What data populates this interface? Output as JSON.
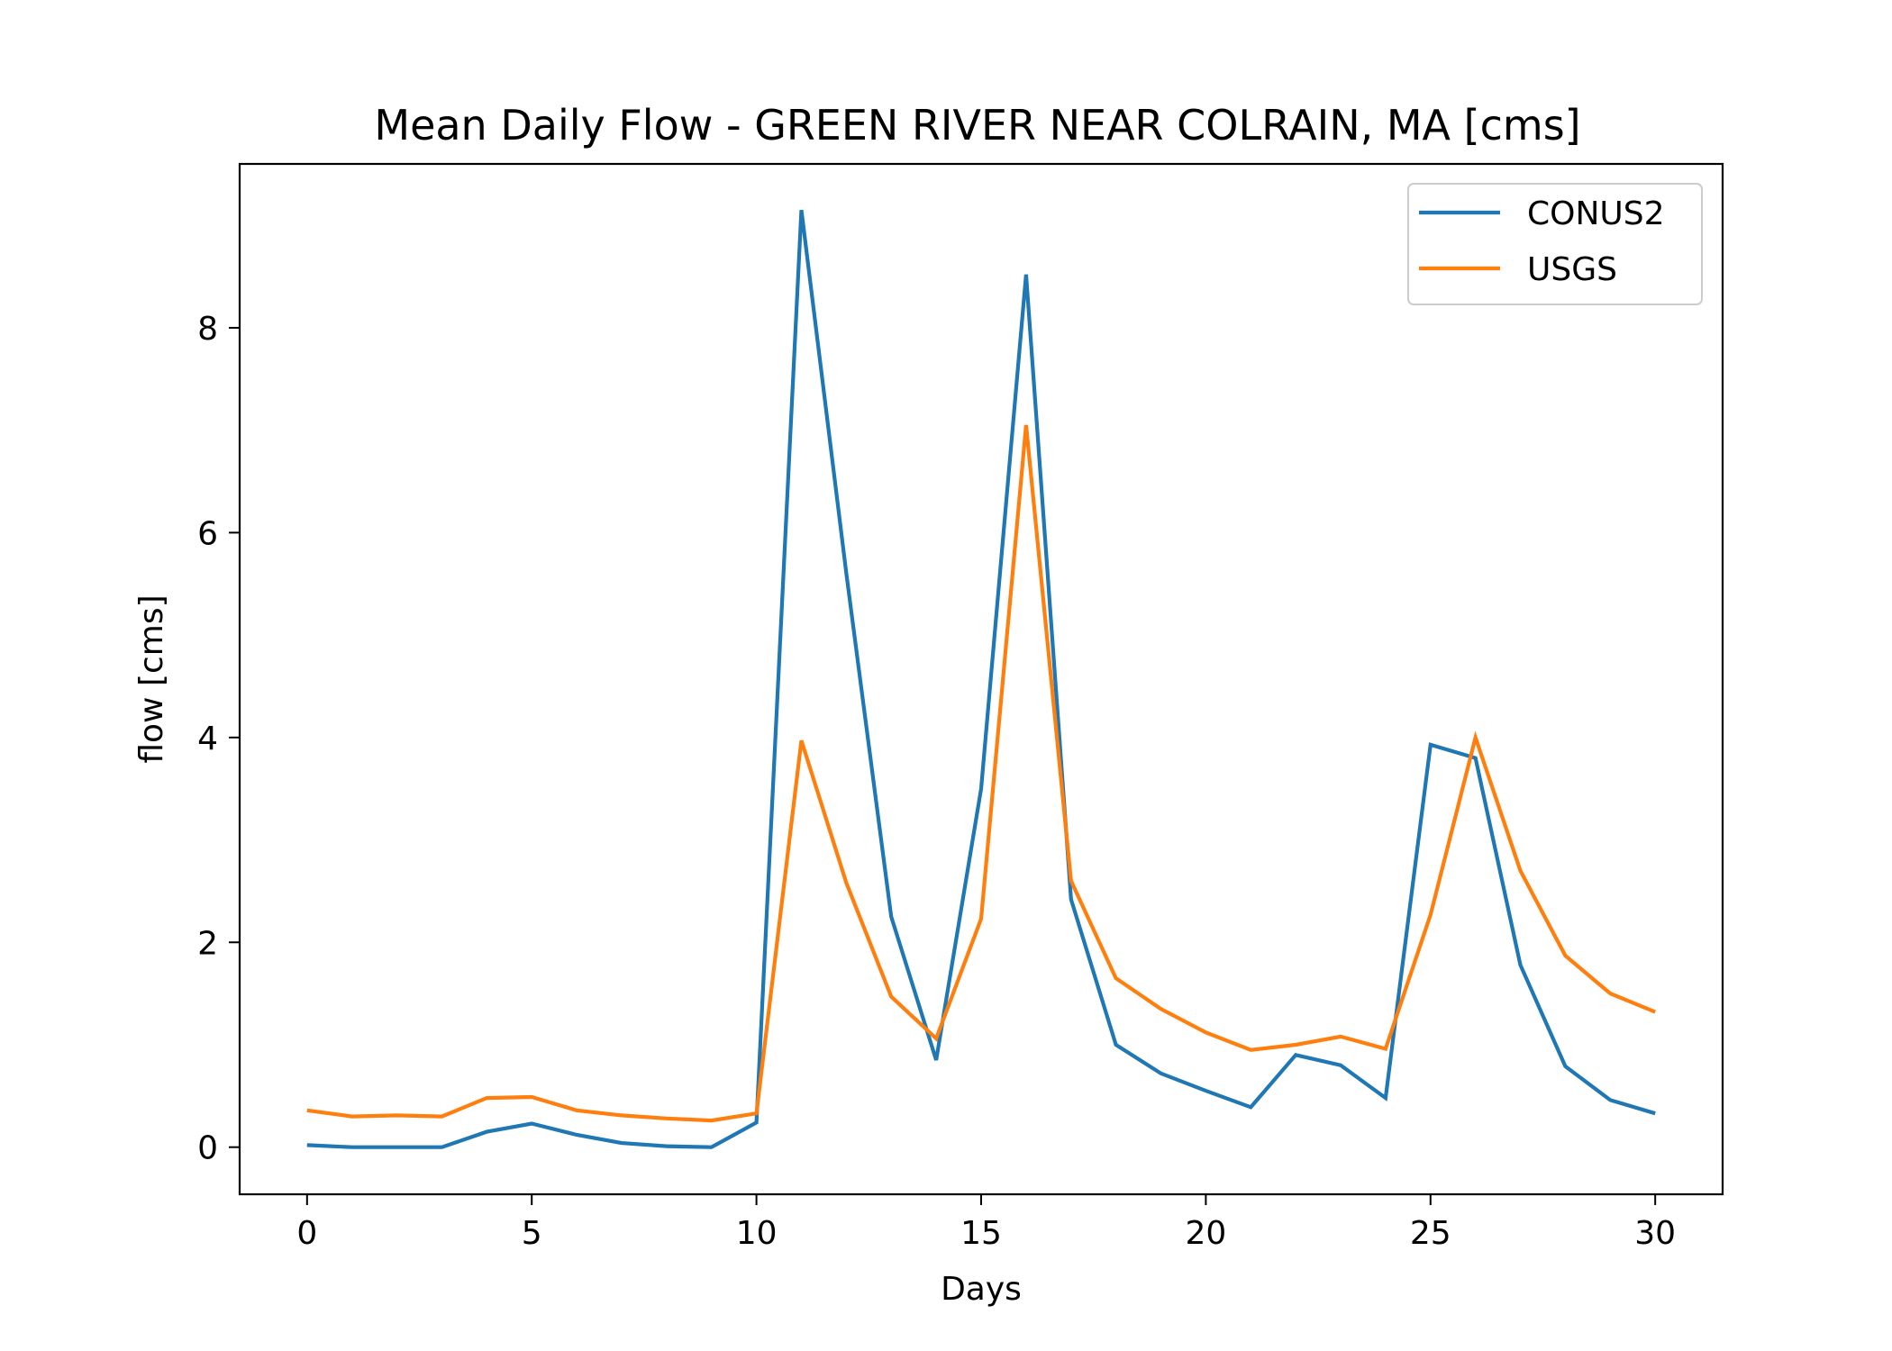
{
  "chart_data": {
    "type": "line",
    "title": "Mean Daily Flow - GREEN RIVER NEAR COLRAIN, MA [cms]",
    "xlabel": "Days",
    "ylabel": "flow [cms]",
    "xlim": [
      -1.5,
      31.5
    ],
    "ylim": [
      -0.46,
      9.6
    ],
    "xticks": [
      0,
      5,
      10,
      15,
      20,
      25,
      30
    ],
    "yticks": [
      0,
      2,
      4,
      6,
      8
    ],
    "grid": false,
    "legend_position": "top-right",
    "x": [
      0,
      1,
      2,
      3,
      4,
      5,
      6,
      7,
      8,
      9,
      10,
      11,
      12,
      13,
      14,
      15,
      16,
      17,
      18,
      19,
      20,
      21,
      22,
      23,
      24,
      25,
      26,
      27,
      28,
      29,
      30
    ],
    "series": [
      {
        "name": "CONUS2",
        "color": "#1f77b4",
        "values": [
          0.02,
          0.0,
          0.0,
          0.0,
          0.15,
          0.23,
          0.12,
          0.04,
          0.01,
          0.0,
          0.24,
          9.15,
          5.6,
          2.25,
          0.85,
          3.5,
          8.52,
          2.42,
          1.0,
          0.72,
          0.55,
          0.39,
          0.9,
          0.8,
          0.48,
          3.93,
          3.8,
          1.78,
          0.79,
          0.46,
          0.33
        ]
      },
      {
        "name": "USGS",
        "color": "#ff7f0e",
        "values": [
          0.36,
          0.3,
          0.31,
          0.3,
          0.48,
          0.49,
          0.36,
          0.31,
          0.28,
          0.26,
          0.33,
          3.97,
          2.58,
          1.47,
          1.06,
          2.23,
          7.05,
          2.6,
          1.65,
          1.35,
          1.12,
          0.95,
          1.0,
          1.08,
          0.96,
          2.27,
          4.0,
          2.7,
          1.87,
          1.5,
          1.32
        ]
      }
    ]
  }
}
